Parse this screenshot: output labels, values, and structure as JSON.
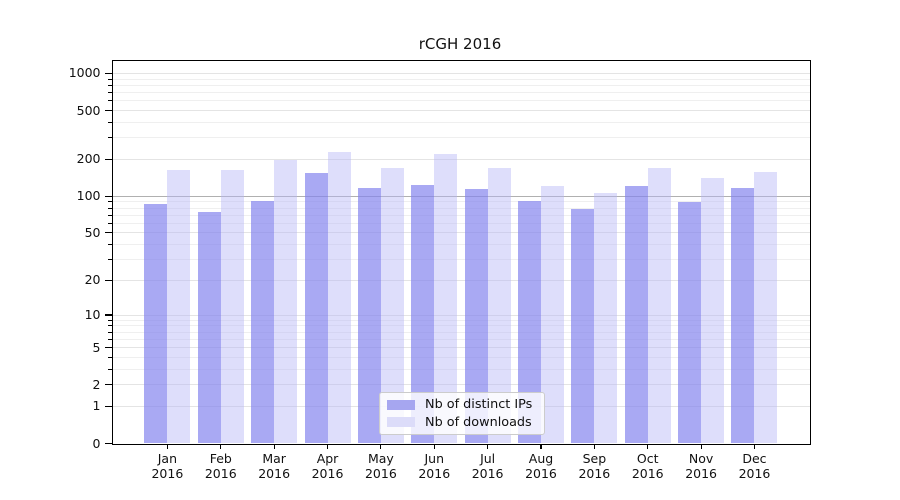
{
  "chart_data": {
    "type": "bar",
    "title": "rCGH 2016",
    "categories": [
      "Jan 2016",
      "Feb 2016",
      "Mar 2016",
      "Apr 2016",
      "May 2016",
      "Jun 2016",
      "Jul 2016",
      "Aug 2016",
      "Sep 2016",
      "Oct 2016",
      "Nov 2016",
      "Dec 2016"
    ],
    "month_labels": [
      "Jan",
      "Feb",
      "Mar",
      "Apr",
      "May",
      "Jun",
      "Jul",
      "Aug",
      "Sep",
      "Oct",
      "Nov",
      "Dec"
    ],
    "year_label": "2016",
    "series": [
      {
        "name": "Nb of distinct IPs",
        "bar_color": "rgba(132,132,238,0.70)",
        "swatch_color": "#a6a6f0",
        "values": [
          86,
          75,
          91,
          154,
          117,
          124,
          114,
          92,
          79,
          122,
          89,
          118
        ]
      },
      {
        "name": "Nb of downloads",
        "bar_color": "rgba(182,182,247,0.45)",
        "swatch_color": "#dcdcf9",
        "values": [
          164,
          163,
          199,
          232,
          171,
          220,
          171,
          121,
          107,
          171,
          140,
          157
        ]
      }
    ],
    "y_scale": "log1p",
    "y_major_ticks": [
      0,
      1,
      2,
      5,
      10,
      20,
      50,
      100,
      200,
      500,
      1000
    ],
    "y_major_tick_labels": [
      "0",
      "1",
      "2",
      "5",
      "10",
      "20",
      "50",
      "100",
      "200",
      "500",
      "1000"
    ],
    "y_minor_ticks": [
      3,
      4,
      6,
      7,
      8,
      9,
      30,
      40,
      60,
      70,
      80,
      90,
      300,
      400,
      600,
      700,
      800,
      900
    ],
    "ylim": [
      0,
      1286
    ],
    "grid": true,
    "emphasized_gridline": 100,
    "legend_position": "lower center"
  }
}
